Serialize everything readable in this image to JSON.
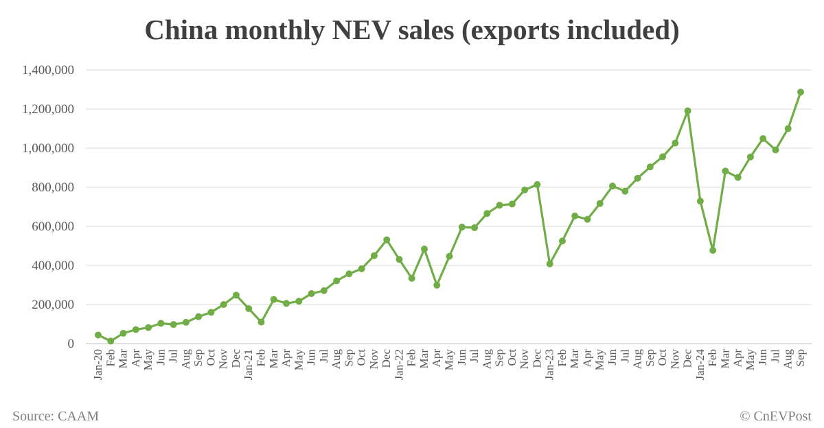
{
  "chart_data": {
    "type": "line",
    "title": "China monthly NEV sales (exports included)",
    "xlabel": "",
    "ylabel": "",
    "ylim": [
      0,
      1400000
    ],
    "yticks": [
      0,
      200000,
      400000,
      600000,
      800000,
      1000000,
      1200000,
      1400000
    ],
    "ytick_labels": [
      "0",
      "200,000",
      "400,000",
      "600,000",
      "800,000",
      "1,000,000",
      "1,200,000",
      "1,400,000"
    ],
    "grid": true,
    "categories": [
      "Jan-20",
      "Feb",
      "Mar",
      "Apr",
      "May",
      "Jun",
      "Jul",
      "Aug",
      "Sep",
      "Oct",
      "Nov",
      "Dec",
      "Jan-21",
      "Feb",
      "Mar",
      "Apr",
      "May",
      "Jun",
      "Jul",
      "Aug",
      "Sep",
      "Oct",
      "Nov",
      "Dec",
      "Jan-22",
      "Feb",
      "Mar",
      "Apr",
      "May",
      "Jun",
      "Jul",
      "Aug",
      "Sep",
      "Oct",
      "Nov",
      "Dec",
      "Jan-23",
      "Feb",
      "Mar",
      "Apr",
      "May",
      "Jun",
      "Jul",
      "Aug",
      "Sep",
      "Oct",
      "Nov",
      "Dec",
      "Jan-24",
      "Feb",
      "Mar",
      "Apr",
      "May",
      "Jun",
      "Jul",
      "Aug",
      "Sep"
    ],
    "series": [
      {
        "name": "NEV sales",
        "color": "#70AD47",
        "values": [
          44000,
          13000,
          53000,
          72000,
          82000,
          104000,
          98000,
          109000,
          138000,
          160000,
          200000,
          248000,
          179000,
          110000,
          226000,
          206000,
          217000,
          256000,
          271000,
          321000,
          357000,
          383000,
          450000,
          531000,
          431000,
          334000,
          484000,
          299000,
          447000,
          596000,
          593000,
          666000,
          708000,
          714000,
          786000,
          814000,
          408000,
          525000,
          653000,
          636000,
          717000,
          806000,
          780000,
          846000,
          904000,
          956000,
          1026000,
          1191000,
          729000,
          477000,
          883000,
          850000,
          955000,
          1049000,
          991000,
          1100000,
          1287000
        ]
      }
    ],
    "source": "Source: CAAM",
    "credit": "© CnEVPost"
  }
}
